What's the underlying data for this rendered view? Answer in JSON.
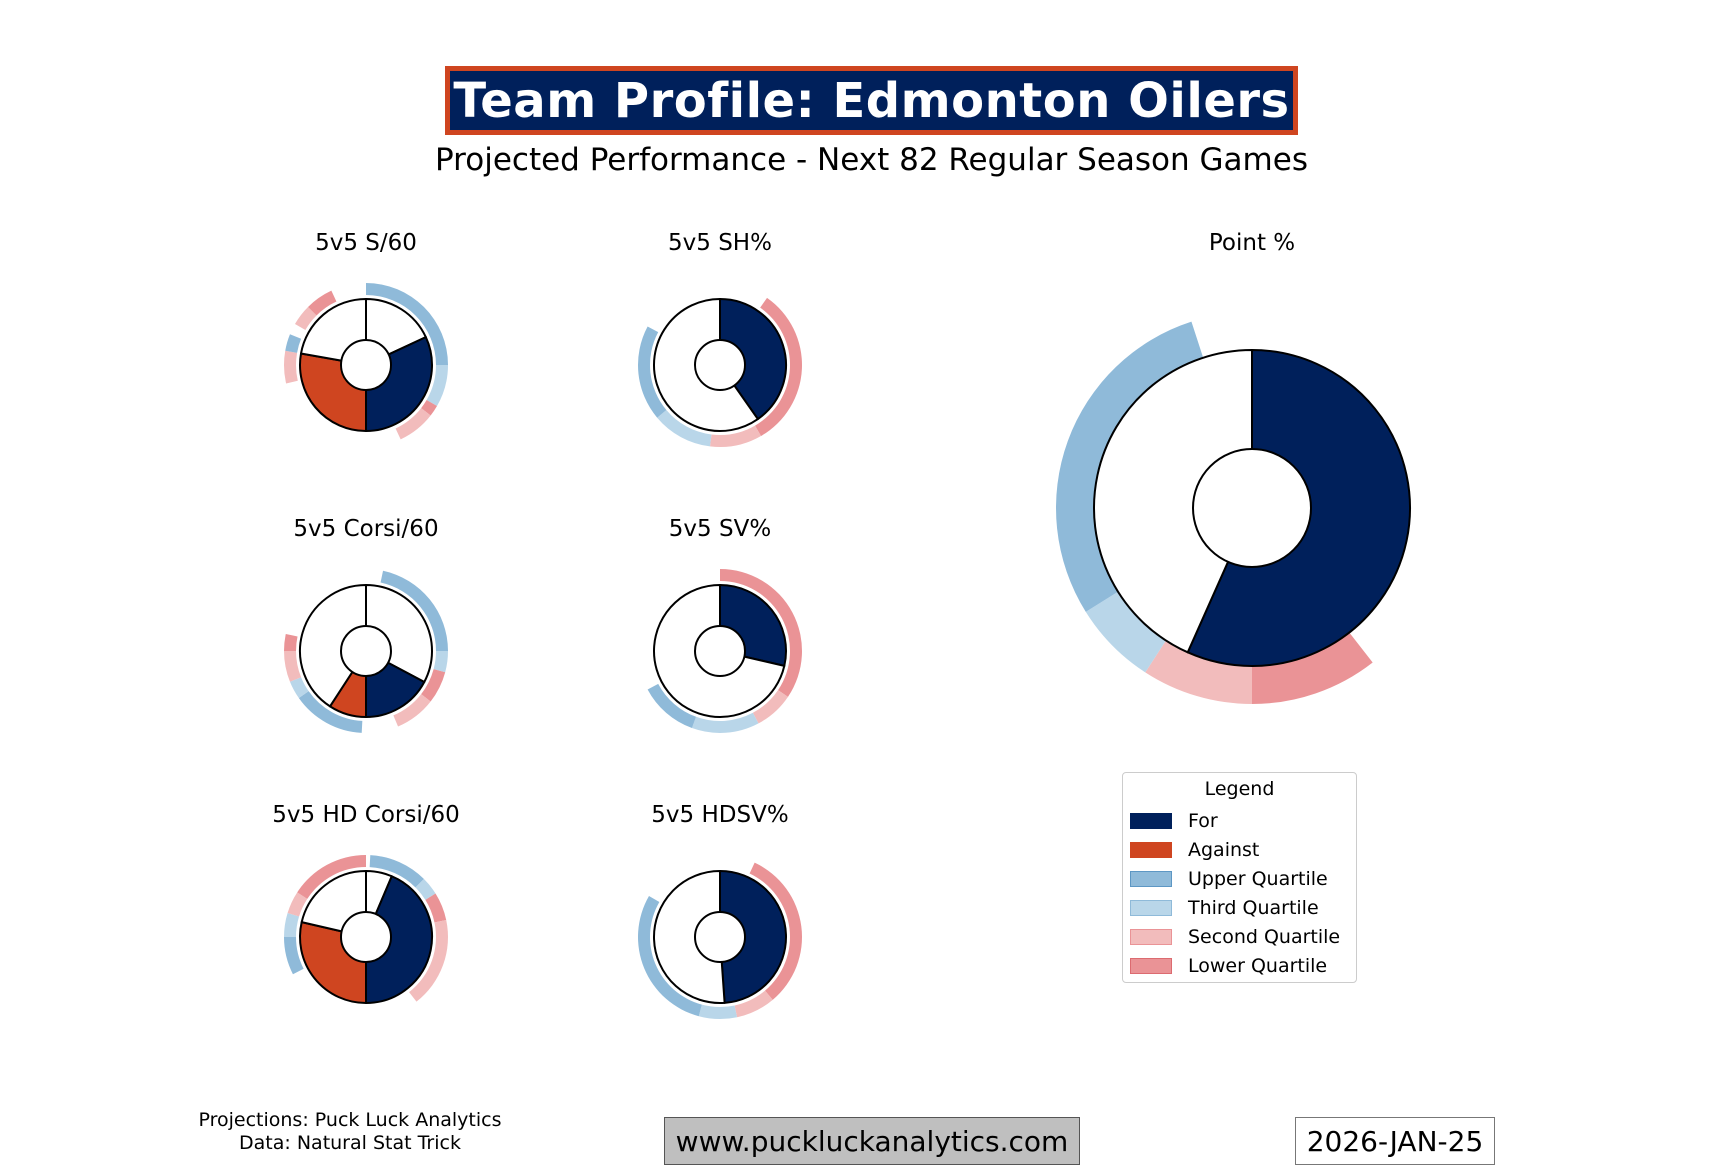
{
  "header": {
    "title": "Team Profile: Edmonton Oilers",
    "subtitle": "Projected Performance - Next 82 Regular Season Games"
  },
  "colors": {
    "for": "#00205b",
    "against": "#cf4520",
    "upper_quartile": "#8fbad9",
    "third_quartile": "#b9d6e9",
    "second_quartile": "#f2bcbc",
    "lower_quartile": "#ea9396"
  },
  "chart_data": [
    {
      "type": "pie",
      "title": "5v5 S/60",
      "inner_values": {
        "for": 29.0,
        "against": 24.6
      },
      "outer_quartile_ranks": {
        "for": "upper",
        "against": "lower"
      }
    },
    {
      "type": "pie",
      "title": "5v5 SH%",
      "inner_values": {
        "for": 10.0
      },
      "outer_quartile_ranks": {
        "for": "lower"
      }
    },
    {
      "type": "pie",
      "title": "Point %",
      "inner_values": {
        "for": 0.567
      },
      "outer_quartile_ranks": {
        "for": "lower"
      }
    },
    {
      "type": "pie",
      "title": "5v5 Corsi/60",
      "inner_values": {
        "for": 61.0,
        "against": 52.0
      },
      "outer_quartile_ranks": {
        "for": "upper",
        "against": "upper"
      }
    },
    {
      "type": "pie",
      "title": "5v5 SV%",
      "inner_values": {
        "for": 0.906
      },
      "outer_quartile_ranks": {
        "for": "lower"
      }
    },
    {
      "type": "pie",
      "title": "5v5 HD Corsi/60",
      "inner_values": {
        "for": 13.5,
        "against": 11.5
      },
      "outer_quartile_ranks": {
        "for": "lower",
        "against": "lower"
      }
    },
    {
      "type": "pie",
      "title": "5v5 HDSV%",
      "inner_values": {
        "for": 0.822
      },
      "outer_quartile_ranks": {
        "for": "lower"
      }
    }
  ],
  "legend": {
    "title": "Legend",
    "items": [
      {
        "label": "For",
        "color": "#00205b"
      },
      {
        "label": "Against",
        "color": "#cf4520"
      },
      {
        "label": "Upper Quartile",
        "color": "#8fbad9"
      },
      {
        "label": "Third Quartile",
        "color": "#b9d6e9"
      },
      {
        "label": "Second Quartile",
        "color": "#f2bcbc"
      },
      {
        "label": "Lower Quartile",
        "color": "#ea9396"
      }
    ]
  },
  "footer": {
    "credits_line1": "Projections: Puck Luck Analytics",
    "credits_line2": "Data: Natural Stat Trick",
    "website": "www.puckluckanalytics.com",
    "date": "2026-JAN-25"
  }
}
